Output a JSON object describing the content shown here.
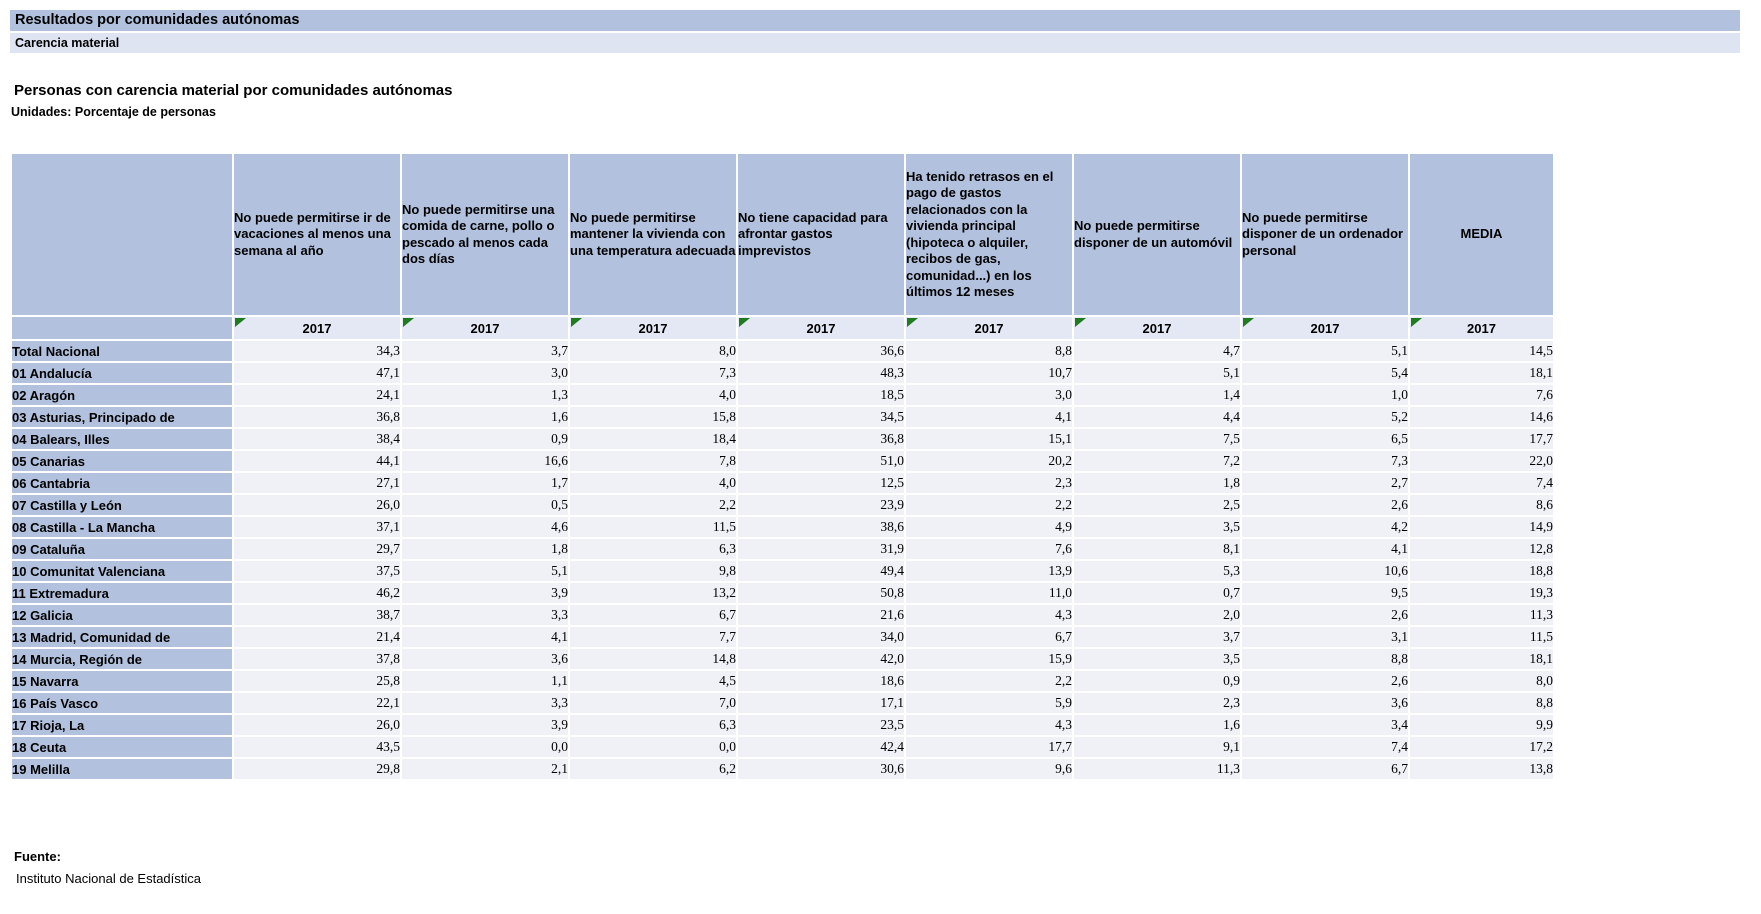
{
  "page": {
    "section_title": "Resultados por comunidades autónomas",
    "subsection_title": "Carencia material",
    "table_title": "Personas con carencia material por comunidades autónomas",
    "units_label": "Unidades: Porcentaje de personas",
    "source": {
      "label": "Fuente:",
      "value": "Instituto Nacional de Estadística"
    }
  },
  "colors": {
    "header_blue": "#b2c2de",
    "subheader_lavender": "#dee4f2",
    "year_row_bg": "#e4e8f4",
    "data_cell_bg": "#eff1f6",
    "marker_green": "#1e7b1e"
  },
  "icons": {
    "year_marker": "green-corner-triangle"
  },
  "table": {
    "year": "2017",
    "columns": [
      "No puede permitirse ir de vacaciones al menos una semana al año",
      "No puede permitirse una comida de carne, pollo o pescado al menos cada dos días",
      "No puede permitirse mantener la vivienda con una temperatura adecuada",
      "No tiene capacidad para afrontar gastos imprevistos",
      "Ha tenido retrasos en el pago de gastos relacionados con la vivienda principal (hipoteca o alquiler, recibos de gas, comunidad...) en los últimos 12 meses",
      "No puede permitirse disponer de un automóvil",
      "No puede permitirse disponer de un ordenador personal",
      "MEDIA"
    ],
    "rows": [
      {
        "label": "Total Nacional",
        "values": [
          "34,3",
          "3,7",
          "8,0",
          "36,6",
          "8,8",
          "4,7",
          "5,1",
          "14,5"
        ]
      },
      {
        "label": "01 Andalucía",
        "values": [
          "47,1",
          "3,0",
          "7,3",
          "48,3",
          "10,7",
          "5,1",
          "5,4",
          "18,1"
        ]
      },
      {
        "label": "02 Aragón",
        "values": [
          "24,1",
          "1,3",
          "4,0",
          "18,5",
          "3,0",
          "1,4",
          "1,0",
          "7,6"
        ]
      },
      {
        "label": "03 Asturias, Principado de",
        "values": [
          "36,8",
          "1,6",
          "15,8",
          "34,5",
          "4,1",
          "4,4",
          "5,2",
          "14,6"
        ]
      },
      {
        "label": "04 Balears, Illes",
        "values": [
          "38,4",
          "0,9",
          "18,4",
          "36,8",
          "15,1",
          "7,5",
          "6,5",
          "17,7"
        ]
      },
      {
        "label": "05 Canarias",
        "values": [
          "44,1",
          "16,6",
          "7,8",
          "51,0",
          "20,2",
          "7,2",
          "7,3",
          "22,0"
        ]
      },
      {
        "label": "06 Cantabria",
        "values": [
          "27,1",
          "1,7",
          "4,0",
          "12,5",
          "2,3",
          "1,8",
          "2,7",
          "7,4"
        ]
      },
      {
        "label": "07 Castilla y León",
        "values": [
          "26,0",
          "0,5",
          "2,2",
          "23,9",
          "2,2",
          "2,5",
          "2,6",
          "8,6"
        ]
      },
      {
        "label": "08 Castilla - La Mancha",
        "values": [
          "37,1",
          "4,6",
          "11,5",
          "38,6",
          "4,9",
          "3,5",
          "4,2",
          "14,9"
        ]
      },
      {
        "label": "09 Cataluña",
        "values": [
          "29,7",
          "1,8",
          "6,3",
          "31,9",
          "7,6",
          "8,1",
          "4,1",
          "12,8"
        ]
      },
      {
        "label": "10 Comunitat Valenciana",
        "values": [
          "37,5",
          "5,1",
          "9,8",
          "49,4",
          "13,9",
          "5,3",
          "10,6",
          "18,8"
        ]
      },
      {
        "label": "11 Extremadura",
        "values": [
          "46,2",
          "3,9",
          "13,2",
          "50,8",
          "11,0",
          "0,7",
          "9,5",
          "19,3"
        ]
      },
      {
        "label": "12 Galicia",
        "values": [
          "38,7",
          "3,3",
          "6,7",
          "21,6",
          "4,3",
          "2,0",
          "2,6",
          "11,3"
        ]
      },
      {
        "label": "13 Madrid, Comunidad de",
        "values": [
          "21,4",
          "4,1",
          "7,7",
          "34,0",
          "6,7",
          "3,7",
          "3,1",
          "11,5"
        ]
      },
      {
        "label": "14 Murcia, Región de",
        "values": [
          "37,8",
          "3,6",
          "14,8",
          "42,0",
          "15,9",
          "3,5",
          "8,8",
          "18,1"
        ]
      },
      {
        "label": "15 Navarra",
        "values": [
          "25,8",
          "1,1",
          "4,5",
          "18,6",
          "2,2",
          "0,9",
          "2,6",
          "8,0"
        ]
      },
      {
        "label": "16 País Vasco",
        "values": [
          "22,1",
          "3,3",
          "7,0",
          "17,1",
          "5,9",
          "2,3",
          "3,6",
          "8,8"
        ]
      },
      {
        "label": "17 Rioja, La",
        "values": [
          "26,0",
          "3,9",
          "6,3",
          "23,5",
          "4,3",
          "1,6",
          "3,4",
          "9,9"
        ]
      },
      {
        "label": "18 Ceuta",
        "values": [
          "43,5",
          "0,0",
          "0,0",
          "42,4",
          "17,7",
          "9,1",
          "7,4",
          "17,2"
        ]
      },
      {
        "label": "19 Melilla",
        "values": [
          "29,8",
          "2,1",
          "6,2",
          "30,6",
          "9,6",
          "11,3",
          "6,7",
          "13,8"
        ]
      }
    ]
  }
}
